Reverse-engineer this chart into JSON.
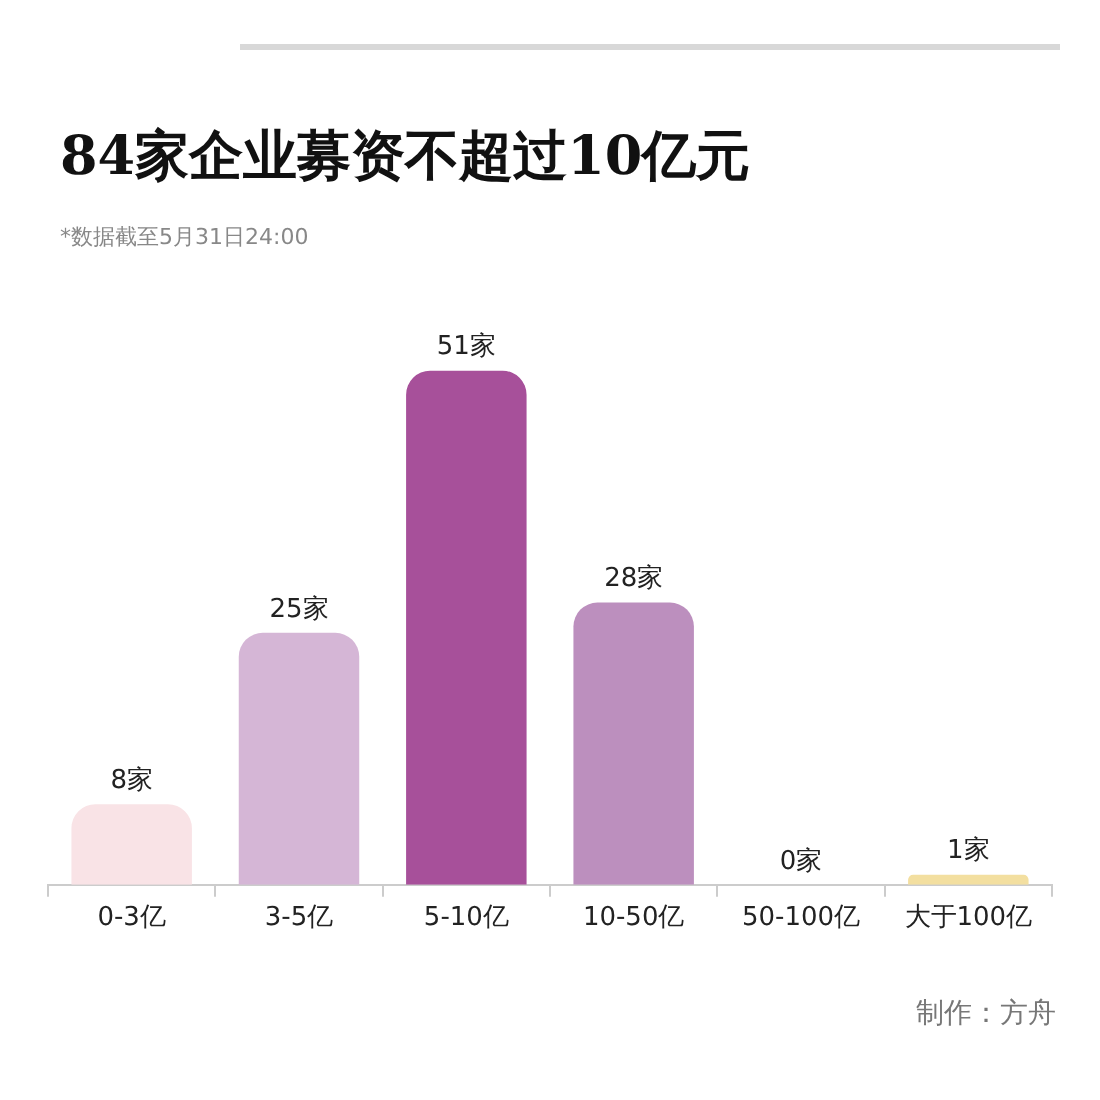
{
  "chart_data": {
    "type": "bar",
    "title": "84家企业募资不超过10亿元",
    "subtitle": "*数据截至5月31日24:00",
    "categories": [
      "0-3亿",
      "3-5亿",
      "5-10亿",
      "10-50亿",
      "50-100亿",
      "大于100亿"
    ],
    "values": [
      8,
      25,
      51,
      28,
      0,
      1
    ],
    "colors": [
      "#f9e3e6",
      "#d5b6d6",
      "#a7509a",
      "#bc8fbe",
      "#e8d7e6",
      "#f3dfa0"
    ],
    "value_labels": [
      "8家",
      "25家",
      "51家",
      "28家",
      "0家",
      "1家"
    ],
    "legend": false,
    "grid": false,
    "annotations": [
      "制作：方舟"
    ]
  }
}
